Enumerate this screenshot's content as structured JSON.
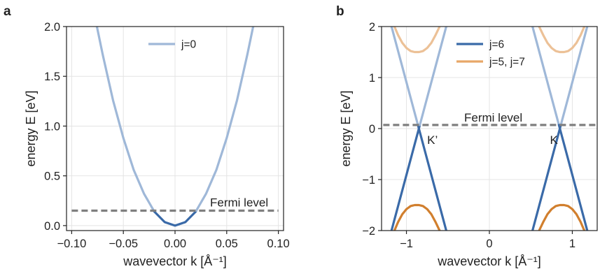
{
  "chart_data": [
    {
      "panel_label": "a",
      "type": "line",
      "xlabel": "wavevector k [Å⁻¹]",
      "ylabel": "energy E [eV]",
      "xlim": [
        -0.105,
        0.105
      ],
      "ylim": [
        -0.05,
        2.0
      ],
      "xticks": [
        {
          "value": -0.1,
          "label": "−0.10"
        },
        {
          "value": -0.05,
          "label": "−0.05"
        },
        {
          "value": 0.0,
          "label": "0.00"
        },
        {
          "value": 0.05,
          "label": "0.05"
        },
        {
          "value": 0.1,
          "label": "0.10"
        }
      ],
      "yticks": [
        {
          "value": 0.0,
          "label": "0.0"
        },
        {
          "value": 0.5,
          "label": "0.5"
        },
        {
          "value": 1.0,
          "label": "1.0"
        },
        {
          "value": 1.5,
          "label": "1.5"
        },
        {
          "value": 2.0,
          "label": "2.0"
        }
      ],
      "grid": true,
      "legend_position": "top-center",
      "legend": [
        {
          "label": "j=0",
          "color": "#9fb8d8"
        }
      ],
      "series": [
        {
          "name": "j=0",
          "x": [
            -0.076,
            -0.07,
            -0.06,
            -0.05,
            -0.04,
            -0.03,
            -0.02,
            -0.01,
            0.0,
            0.01,
            0.02,
            0.03,
            0.04,
            0.05,
            0.06,
            0.07,
            0.076
          ],
          "y": [
            2.02,
            1.72,
            1.26,
            0.88,
            0.56,
            0.32,
            0.14,
            0.035,
            0.0,
            0.035,
            0.14,
            0.32,
            0.56,
            0.88,
            1.26,
            1.72,
            2.02
          ],
          "occupied_below_fermi": true
        }
      ],
      "fermi_level": {
        "value": 0.15,
        "label": "Fermi level",
        "x_range": [
          -0.1,
          0.1
        ]
      },
      "annotations": [],
      "colors": {
        "unoccupied": "#9fb8d8",
        "occupied": "#3a6aa8",
        "fermi": "#7f7f7f"
      }
    },
    {
      "panel_label": "b",
      "type": "line",
      "xlabel": "wavevector k [Å⁻¹]",
      "ylabel": "energy E [eV]",
      "xlim": [
        -1.3,
        1.3
      ],
      "ylim": [
        -2.0,
        2.0
      ],
      "xticks": [
        {
          "value": -1,
          "label": "−1"
        },
        {
          "value": 0,
          "label": "0"
        },
        {
          "value": 1,
          "label": "1"
        }
      ],
      "yticks": [
        {
          "value": -2,
          "label": "−2"
        },
        {
          "value": -1,
          "label": "−1"
        },
        {
          "value": 0,
          "label": "0"
        },
        {
          "value": 1,
          "label": "1"
        },
        {
          "value": 2,
          "label": "2"
        }
      ],
      "grid": true,
      "legend_position": "top-center",
      "legend": [
        {
          "label": "j=6",
          "color": "#3a6aa8"
        },
        {
          "label": "j=5, j=7",
          "color": "#e8a768"
        }
      ],
      "series": [
        {
          "name": "j=6",
          "group": "j6",
          "x": [
            -1.18,
            -0.85
          ],
          "y": [
            2.0,
            0.0
          ],
          "occupied_below_fermi": true
        },
        {
          "name": "j=6",
          "group": "j6",
          "x": [
            -0.85,
            -0.52
          ],
          "y": [
            0.0,
            2.0
          ],
          "occupied_below_fermi": true
        },
        {
          "name": "j=6",
          "group": "j6",
          "x": [
            -0.85,
            -1.18
          ],
          "y": [
            0.0,
            -2.0
          ],
          "occupied_below_fermi": true
        },
        {
          "name": "j=6",
          "group": "j6",
          "x": [
            -0.85,
            -0.52
          ],
          "y": [
            0.0,
            -2.0
          ],
          "occupied_below_fermi": true
        },
        {
          "name": "j=6",
          "group": "j6",
          "x": [
            0.52,
            0.85
          ],
          "y": [
            2.0,
            0.0
          ],
          "occupied_below_fermi": true
        },
        {
          "name": "j=6",
          "group": "j6",
          "x": [
            0.85,
            1.18
          ],
          "y": [
            0.0,
            2.0
          ],
          "occupied_below_fermi": true
        },
        {
          "name": "j=6",
          "group": "j6",
          "x": [
            0.85,
            0.52
          ],
          "y": [
            0.0,
            -2.0
          ],
          "occupied_below_fermi": true
        },
        {
          "name": "j=6",
          "group": "j6",
          "x": [
            0.85,
            1.18
          ],
          "y": [
            0.0,
            -2.0
          ],
          "occupied_below_fermi": true
        },
        {
          "name": "j=5, j=7",
          "group": "j57",
          "x": [
            -1.15,
            -1.1,
            -1.05,
            -1.0,
            -0.95,
            -0.9,
            -0.85,
            -0.8,
            -0.75,
            -0.7,
            -0.65,
            -0.6,
            -0.55
          ],
          "y": [
            2.02,
            1.83,
            1.68,
            1.58,
            1.52,
            1.5,
            1.5,
            1.52,
            1.58,
            1.68,
            1.83,
            2.0,
            2.2
          ],
          "occupied_below_fermi": true
        },
        {
          "name": "j=5, j=7",
          "group": "j57",
          "x": [
            0.55,
            0.6,
            0.65,
            0.7,
            0.75,
            0.8,
            0.85,
            0.9,
            0.95,
            1.0,
            1.05,
            1.1,
            1.15
          ],
          "y": [
            2.2,
            2.0,
            1.83,
            1.68,
            1.58,
            1.52,
            1.5,
            1.5,
            1.52,
            1.58,
            1.68,
            1.83,
            2.02
          ],
          "occupied_below_fermi": true
        },
        {
          "name": "j=5, j=7",
          "group": "j57",
          "x": [
            -1.15,
            -1.1,
            -1.05,
            -1.0,
            -0.95,
            -0.9,
            -0.85,
            -0.8,
            -0.75,
            -0.7,
            -0.65,
            -0.6,
            -0.55
          ],
          "y": [
            -2.02,
            -1.83,
            -1.68,
            -1.58,
            -1.52,
            -1.5,
            -1.5,
            -1.52,
            -1.58,
            -1.68,
            -1.83,
            -2.0,
            -2.2
          ],
          "occupied_below_fermi": true
        },
        {
          "name": "j=5, j=7",
          "group": "j57",
          "x": [
            0.55,
            0.6,
            0.65,
            0.7,
            0.75,
            0.8,
            0.85,
            0.9,
            0.95,
            1.0,
            1.05,
            1.1,
            1.15
          ],
          "y": [
            -2.2,
            -2.0,
            -1.83,
            -1.68,
            -1.58,
            -1.52,
            -1.5,
            -1.5,
            -1.52,
            -1.58,
            -1.68,
            -1.83,
            -2.02
          ],
          "occupied_below_fermi": true
        }
      ],
      "fermi_level": {
        "value": 0.07,
        "label": "Fermi level",
        "x_range": [
          -1.28,
          1.28
        ]
      },
      "annotations": [
        {
          "text": "K’",
          "x": -0.75,
          "y": -0.3
        },
        {
          "text": "K",
          "x": 0.73,
          "y": -0.3
        }
      ],
      "colors": {
        "j6_unoccupied": "#9fb8d8",
        "j6_occupied": "#3a6aa8",
        "j57_unoccupied": "#ecc197",
        "j57_occupied": "#d17f2e",
        "fermi": "#7f7f7f"
      }
    }
  ]
}
